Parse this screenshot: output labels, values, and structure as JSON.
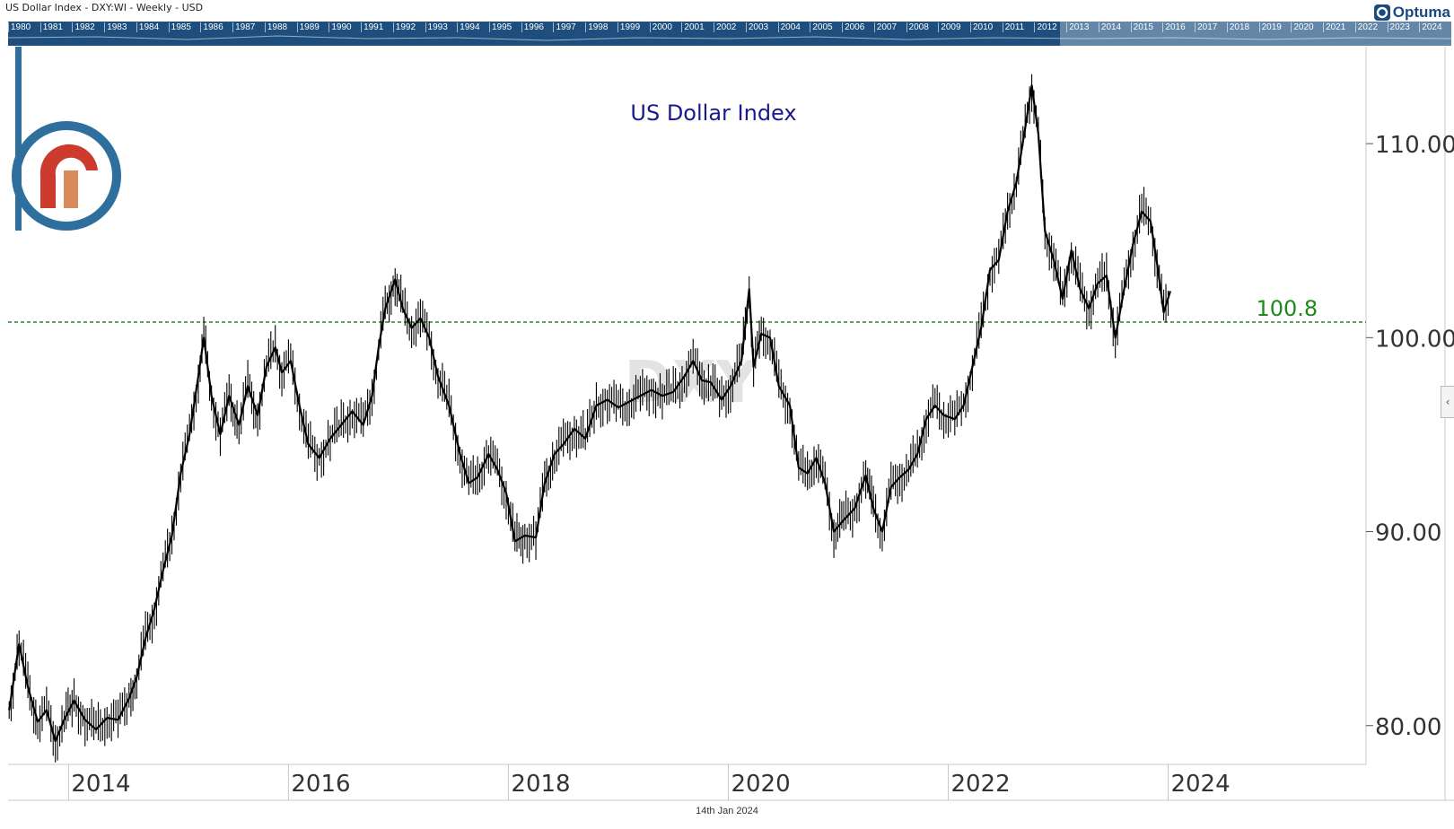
{
  "header": {
    "title": "US Dollar Index - DXY:WI - Weekly - USD",
    "brand": "Optuma"
  },
  "scroller_years": [
    "1980",
    "1981",
    "1982",
    "1983",
    "1984",
    "1985",
    "1986",
    "1987",
    "1988",
    "1989",
    "1990",
    "1991",
    "1992",
    "1993",
    "1994",
    "1995",
    "1996",
    "1997",
    "1998",
    "1999",
    "2000",
    "2001",
    "2002",
    "2003",
    "2004",
    "2005",
    "2006",
    "2007",
    "2008",
    "2009",
    "2010",
    "2011",
    "2012",
    "2013",
    "2014",
    "2015",
    "2016",
    "2017",
    "2018",
    "2019",
    "2020",
    "2021",
    "2022",
    "2023",
    "2024"
  ],
  "footer_date": "14th Jan 2024",
  "chart_data": {
    "type": "line",
    "title": "US Dollar Index",
    "watermark": "DXY",
    "frequency": "Weekly",
    "x_label": "",
    "y_label": "",
    "x_range": [
      2013.45,
      2025.8
    ],
    "ylim": [
      78,
      115
    ],
    "x_ticks": [
      "2014",
      "2016",
      "2018",
      "2020",
      "2022",
      "2024"
    ],
    "y_ticks": [
      "80.00",
      "90.00",
      "100.00",
      "110.00"
    ],
    "reference_line": {
      "value": 100.8,
      "label": "100.8",
      "color": "#1e8a1e",
      "style": "dashed"
    },
    "series": [
      {
        "color": "#000000",
        "points": [
          [
            2013.46,
            80.8
          ],
          [
            2013.55,
            84.2
          ],
          [
            2013.63,
            82.0
          ],
          [
            2013.72,
            80.2
          ],
          [
            2013.8,
            80.8
          ],
          [
            2013.88,
            79.2
          ],
          [
            2013.96,
            80.3
          ],
          [
            2014.05,
            81.3
          ],
          [
            2014.15,
            80.3
          ],
          [
            2014.25,
            79.8
          ],
          [
            2014.35,
            80.4
          ],
          [
            2014.45,
            80.3
          ],
          [
            2014.55,
            81.4
          ],
          [
            2014.62,
            82.5
          ],
          [
            2014.7,
            84.5
          ],
          [
            2014.78,
            86.0
          ],
          [
            2014.86,
            88.0
          ],
          [
            2014.94,
            89.8
          ],
          [
            2015.02,
            93.0
          ],
          [
            2015.1,
            95.0
          ],
          [
            2015.18,
            98.0
          ],
          [
            2015.23,
            100.0
          ],
          [
            2015.3,
            97.0
          ],
          [
            2015.38,
            95.0
          ],
          [
            2015.46,
            97.0
          ],
          [
            2015.55,
            95.5
          ],
          [
            2015.63,
            97.5
          ],
          [
            2015.72,
            96.0
          ],
          [
            2015.8,
            98.5
          ],
          [
            2015.88,
            99.5
          ],
          [
            2015.94,
            98.2
          ],
          [
            2016.02,
            98.8
          ],
          [
            2016.1,
            96.5
          ],
          [
            2016.18,
            94.5
          ],
          [
            2016.28,
            93.8
          ],
          [
            2016.38,
            94.8
          ],
          [
            2016.48,
            95.5
          ],
          [
            2016.58,
            96.2
          ],
          [
            2016.68,
            95.5
          ],
          [
            2016.76,
            97.0
          ],
          [
            2016.82,
            99.5
          ],
          [
            2016.88,
            101.5
          ],
          [
            2016.97,
            103.0
          ],
          [
            2017.04,
            101.5
          ],
          [
            2017.12,
            100.5
          ],
          [
            2017.2,
            101.0
          ],
          [
            2017.28,
            100.0
          ],
          [
            2017.36,
            98.0
          ],
          [
            2017.46,
            96.5
          ],
          [
            2017.56,
            94.0
          ],
          [
            2017.64,
            92.5
          ],
          [
            2017.72,
            92.8
          ],
          [
            2017.82,
            94.0
          ],
          [
            2017.9,
            93.2
          ],
          [
            2017.98,
            92.0
          ],
          [
            2018.06,
            89.5
          ],
          [
            2018.15,
            89.8
          ],
          [
            2018.25,
            89.7
          ],
          [
            2018.33,
            92.5
          ],
          [
            2018.42,
            94.0
          ],
          [
            2018.5,
            94.5
          ],
          [
            2018.6,
            95.3
          ],
          [
            2018.7,
            94.8
          ],
          [
            2018.8,
            96.5
          ],
          [
            2018.9,
            96.8
          ],
          [
            2019.0,
            96.4
          ],
          [
            2019.1,
            96.7
          ],
          [
            2019.2,
            97.0
          ],
          [
            2019.3,
            97.3
          ],
          [
            2019.4,
            97.0
          ],
          [
            2019.5,
            97.2
          ],
          [
            2019.6,
            98.0
          ],
          [
            2019.68,
            98.8
          ],
          [
            2019.76,
            97.8
          ],
          [
            2019.84,
            97.7
          ],
          [
            2019.94,
            96.8
          ],
          [
            2020.02,
            97.5
          ],
          [
            2020.12,
            98.8
          ],
          [
            2020.19,
            102.5
          ],
          [
            2020.23,
            98.5
          ],
          [
            2020.3,
            100.2
          ],
          [
            2020.38,
            100.0
          ],
          [
            2020.46,
            97.5
          ],
          [
            2020.56,
            96.5
          ],
          [
            2020.64,
            93.3
          ],
          [
            2020.72,
            93.0
          ],
          [
            2020.8,
            93.8
          ],
          [
            2020.88,
            92.5
          ],
          [
            2020.96,
            90.0
          ],
          [
            2021.05,
            90.6
          ],
          [
            2021.15,
            91.2
          ],
          [
            2021.25,
            92.9
          ],
          [
            2021.32,
            91.2
          ],
          [
            2021.4,
            90.0
          ],
          [
            2021.48,
            92.3
          ],
          [
            2021.56,
            92.8
          ],
          [
            2021.64,
            93.2
          ],
          [
            2021.72,
            94.0
          ],
          [
            2021.8,
            95.8
          ],
          [
            2021.88,
            96.5
          ],
          [
            2021.96,
            96.0
          ],
          [
            2022.06,
            95.8
          ],
          [
            2022.14,
            96.5
          ],
          [
            2022.22,
            98.5
          ],
          [
            2022.3,
            100.5
          ],
          [
            2022.38,
            103.5
          ],
          [
            2022.46,
            104.0
          ],
          [
            2022.54,
            106.5
          ],
          [
            2022.62,
            108.0
          ],
          [
            2022.7,
            110.8
          ],
          [
            2022.76,
            113.0
          ],
          [
            2022.82,
            110.5
          ],
          [
            2022.88,
            105.5
          ],
          [
            2022.96,
            104.0
          ],
          [
            2023.04,
            102.0
          ],
          [
            2023.12,
            104.5
          ],
          [
            2023.2,
            102.5
          ],
          [
            2023.28,
            101.5
          ],
          [
            2023.36,
            102.8
          ],
          [
            2023.44,
            103.2
          ],
          [
            2023.52,
            100.0
          ],
          [
            2023.6,
            102.5
          ],
          [
            2023.68,
            104.8
          ],
          [
            2023.76,
            106.5
          ],
          [
            2023.84,
            106.0
          ],
          [
            2023.9,
            103.8
          ],
          [
            2023.96,
            101.3
          ],
          [
            2024.02,
            102.4
          ]
        ]
      }
    ]
  }
}
